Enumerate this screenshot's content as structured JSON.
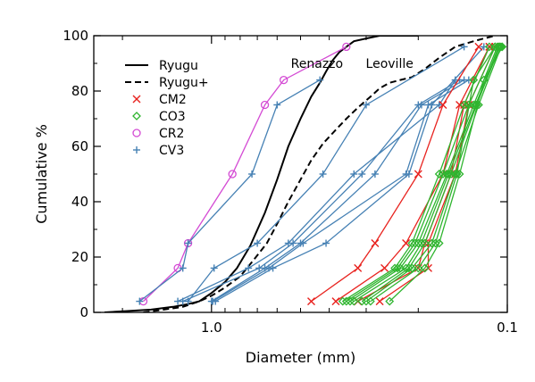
{
  "chart_data": {
    "type": "line",
    "xlabel": "Diameter (mm)",
    "ylabel": "Cumulative %",
    "x_scale": "log",
    "x_reversed": true,
    "xlim": [
      2.5,
      0.1
    ],
    "ylim": [
      0,
      100
    ],
    "xticks": [
      {
        "value": 1.0,
        "label": "1.0"
      },
      {
        "value": 0.1,
        "label": "0.1"
      }
    ],
    "yticks": [
      0,
      20,
      40,
      60,
      80,
      100
    ],
    "grid": false,
    "legend_position": "top-left",
    "legend": [
      {
        "label": "Ryugu",
        "style": "solid",
        "color": "#000000"
      },
      {
        "label": "Ryugu+",
        "style": "dashed",
        "color": "#000000"
      },
      {
        "label": "CM2",
        "marker": "x",
        "color": "#e8231f"
      },
      {
        "label": "CO3",
        "marker": "diamond",
        "color": "#2fb52f"
      },
      {
        "label": "CR2",
        "marker": "circle",
        "color": "#d44bd4"
      },
      {
        "label": "CV3",
        "marker": "plus",
        "color": "#4681b4"
      }
    ],
    "annotations": [
      {
        "text": "Renazzo",
        "x": 0.44,
        "y": 90
      },
      {
        "text": "Leoville",
        "x": 0.25,
        "y": 90
      }
    ],
    "series": [
      {
        "name": "Ryugu",
        "kind": "curve",
        "style": "solid",
        "color": "#000000",
        "x": [
          2.3,
          1.9,
          1.6,
          1.35,
          1.2,
          1.1,
          1.0,
          0.9,
          0.82,
          0.74,
          0.66,
          0.6,
          0.55,
          0.5,
          0.46,
          0.43,
          0.41,
          0.39,
          0.37,
          0.35,
          0.33,
          0.3,
          0.27,
          0.22,
          0.2
        ],
        "y": [
          0,
          0.5,
          1,
          2,
          3,
          4,
          7,
          11,
          16,
          24,
          36,
          48,
          60,
          70,
          78,
          83,
          87,
          91,
          94,
          96,
          98,
          99,
          100,
          100,
          100
        ]
      },
      {
        "name": "Ryugu+",
        "kind": "curve",
        "style": "dashed",
        "color": "#000000",
        "x": [
          1.7,
          1.45,
          1.25,
          1.1,
          1.0,
          0.9,
          0.8,
          0.72,
          0.65,
          0.6,
          0.55,
          0.5,
          0.46,
          0.42,
          0.38,
          0.35,
          0.32,
          0.29,
          0.27,
          0.25,
          0.23,
          0.21,
          0.19,
          0.17,
          0.15,
          0.13,
          0.12,
          0.11
        ],
        "y": [
          0,
          1,
          2,
          4,
          6,
          9,
          13,
          19,
          25,
          32,
          40,
          48,
          55,
          61,
          66,
          70,
          74,
          78,
          81,
          83,
          84,
          85,
          88,
          92,
          96,
          98,
          99,
          100
        ]
      },
      {
        "name": "CR2",
        "color": "#d44bd4",
        "marker": "circle",
        "x": [
          1.7,
          1.3,
          1.2,
          0.85,
          0.66,
          0.57,
          0.35
        ],
        "y": [
          4,
          16,
          25,
          50,
          75,
          84,
          96
        ]
      },
      {
        "name": "CV3",
        "color": "#4681b4",
        "marker": "plus",
        "x": [
          1.75,
          1.25,
          1.2,
          0.73,
          0.6,
          0.43
        ],
        "y": [
          4,
          16,
          25,
          50,
          75,
          84
        ]
      },
      {
        "name": "CV3",
        "color": "#4681b4",
        "marker": "plus",
        "x": [
          1.2,
          0.98,
          0.7,
          0.42,
          0.3,
          0.14
        ],
        "y": [
          4,
          16,
          25,
          50,
          75,
          96
        ]
      },
      {
        "name": "CV3",
        "color": "#4681b4",
        "marker": "plus",
        "x": [
          1.3,
          0.75,
          0.55,
          0.33,
          0.17,
          0.15
        ],
        "y": [
          4,
          16,
          25,
          50,
          75,
          84
        ]
      },
      {
        "name": "CV3",
        "color": "#4681b4",
        "marker": "plus",
        "x": [
          1.25,
          0.69,
          0.53,
          0.31,
          0.2,
          0.145
        ],
        "y": [
          4,
          16,
          25,
          50,
          75,
          84
        ]
      },
      {
        "name": "CV3",
        "color": "#4681b4",
        "marker": "plus",
        "x": [
          1.0,
          0.66,
          0.5,
          0.28,
          0.195,
          0.14
        ],
        "y": [
          4,
          16,
          25,
          50,
          75,
          84
        ]
      },
      {
        "name": "CV3",
        "color": "#4681b4",
        "marker": "plus",
        "x": [
          0.99,
          0.64,
          0.49,
          0.22,
          0.185,
          0.135
        ],
        "y": [
          4,
          16,
          25,
          50,
          75,
          84
        ]
      },
      {
        "name": "CV3",
        "color": "#4681b4",
        "marker": "plus",
        "x": [
          0.97,
          0.62,
          0.41,
          0.215,
          0.18,
          0.12
        ],
        "y": [
          4,
          16,
          25,
          50,
          75,
          96
        ]
      },
      {
        "name": "CM2",
        "color": "#e8231f",
        "marker": "x",
        "x": [
          0.46,
          0.32,
          0.28,
          0.2,
          0.165,
          0.125
        ],
        "y": [
          4,
          16,
          25,
          50,
          75,
          96
        ]
      },
      {
        "name": "CM2",
        "color": "#e8231f",
        "marker": "x",
        "x": [
          0.38,
          0.26,
          0.22,
          0.165,
          0.145,
          0.115
        ],
        "y": [
          4,
          16,
          25,
          50,
          75,
          96
        ]
      },
      {
        "name": "CM2",
        "color": "#e8231f",
        "marker": "x",
        "x": [
          0.32,
          0.2,
          0.19,
          0.155,
          0.14,
          0.115
        ],
        "y": [
          4,
          16,
          25,
          50,
          75,
          96
        ]
      },
      {
        "name": "CM2",
        "color": "#e8231f",
        "marker": "x",
        "x": [
          0.27,
          0.185,
          0.185,
          0.15,
          0.135,
          0.11
        ],
        "y": [
          4,
          16,
          25,
          50,
          75,
          96
        ]
      },
      {
        "name": "CO3",
        "color": "#2fb52f",
        "marker": "diamond",
        "x": [
          0.36,
          0.24,
          0.21,
          0.17,
          0.14,
          0.115
        ],
        "y": [
          4,
          16,
          25,
          50,
          75,
          96
        ]
      },
      {
        "name": "CO3",
        "color": "#2fb52f",
        "marker": "diamond",
        "x": [
          0.35,
          0.235,
          0.205,
          0.165,
          0.135,
          0.11
        ],
        "y": [
          4,
          16,
          25,
          50,
          75,
          96
        ]
      },
      {
        "name": "CO3",
        "color": "#2fb52f",
        "marker": "diamond",
        "x": [
          0.34,
          0.23,
          0.2,
          0.16,
          0.13,
          0.108
        ],
        "y": [
          4,
          16,
          25,
          50,
          75,
          96
        ]
      },
      {
        "name": "CO3",
        "color": "#2fb52f",
        "marker": "diamond",
        "x": [
          0.33,
          0.22,
          0.195,
          0.158,
          0.128,
          0.107
        ],
        "y": [
          4,
          16,
          25,
          50,
          75,
          96
        ]
      },
      {
        "name": "CO3",
        "color": "#2fb52f",
        "marker": "diamond",
        "x": [
          0.31,
          0.215,
          0.19,
          0.155,
          0.127,
          0.106
        ],
        "y": [
          4,
          16,
          25,
          50,
          75,
          96
        ]
      },
      {
        "name": "CO3",
        "color": "#2fb52f",
        "marker": "diamond",
        "x": [
          0.3,
          0.21,
          0.18,
          0.15,
          0.125,
          0.105
        ],
        "y": [
          4,
          16,
          25,
          50,
          75,
          96
        ]
      },
      {
        "name": "CO3",
        "color": "#2fb52f",
        "marker": "diamond",
        "x": [
          0.29,
          0.2,
          0.175,
          0.148,
          0.13,
          0.11
        ],
        "y": [
          4,
          16,
          25,
          50,
          84,
          96
        ]
      },
      {
        "name": "CO3",
        "color": "#2fb52f",
        "marker": "diamond",
        "x": [
          0.25,
          0.19,
          0.17,
          0.145,
          0.12,
          0.104
        ],
        "y": [
          4,
          16,
          25,
          50,
          84,
          96
        ]
      }
    ]
  }
}
